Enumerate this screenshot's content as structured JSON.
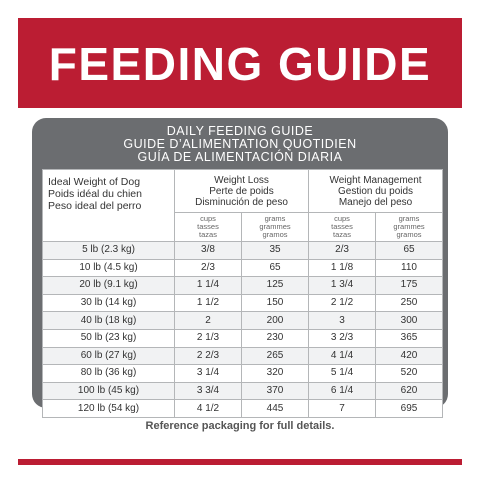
{
  "banner": {
    "title": "FEEDING GUIDE"
  },
  "card": {
    "title_en": "DAILY FEEDING GUIDE",
    "title_fr": "GUIDE D’ALIMENTATION QUOTIDIEN",
    "title_es": "GUÍA DE ALIMENTACIÓN DIARIA"
  },
  "table": {
    "col_weight": [
      "Ideal Weight of Dog",
      "Poids idéal du chien",
      "Peso ideal del perro"
    ],
    "col_loss": [
      "Weight Loss",
      "Perte de poids",
      "Disminución de peso"
    ],
    "col_mgmt": [
      "Weight Management",
      "Gestion du poids",
      "Manejo del peso"
    ],
    "unit_cups": [
      "cups",
      "tasses",
      "tazas"
    ],
    "unit_grams": [
      "grams",
      "grammes",
      "gramos"
    ],
    "rows": [
      {
        "weight": "5 lb (2.3 kg)",
        "loss_cups": "3/8",
        "loss_grams": "35",
        "mgmt_cups": "2/3",
        "mgmt_grams": "65"
      },
      {
        "weight": "10 lb (4.5 kg)",
        "loss_cups": "2/3",
        "loss_grams": "65",
        "mgmt_cups": "1 1/8",
        "mgmt_grams": "110"
      },
      {
        "weight": "20 lb (9.1 kg)",
        "loss_cups": "1 1/4",
        "loss_grams": "125",
        "mgmt_cups": "1 3/4",
        "mgmt_grams": "175"
      },
      {
        "weight": "30 lb (14 kg)",
        "loss_cups": "1 1/2",
        "loss_grams": "150",
        "mgmt_cups": "2 1/2",
        "mgmt_grams": "250"
      },
      {
        "weight": "40 lb (18 kg)",
        "loss_cups": "2",
        "loss_grams": "200",
        "mgmt_cups": "3",
        "mgmt_grams": "300"
      },
      {
        "weight": "50 lb (23 kg)",
        "loss_cups": "2 1/3",
        "loss_grams": "230",
        "mgmt_cups": "3 2/3",
        "mgmt_grams": "365"
      },
      {
        "weight": "60 lb (27 kg)",
        "loss_cups": "2 2/3",
        "loss_grams": "265",
        "mgmt_cups": "4 1/4",
        "mgmt_grams": "420"
      },
      {
        "weight": "80 lb (36 kg)",
        "loss_cups": "3 1/4",
        "loss_grams": "320",
        "mgmt_cups": "5 1/4",
        "mgmt_grams": "520"
      },
      {
        "weight": "100 lb (45 kg)",
        "loss_cups": "3 3/4",
        "loss_grams": "370",
        "mgmt_cups": "6 1/4",
        "mgmt_grams": "620"
      },
      {
        "weight": "120 lb (54 kg)",
        "loss_cups": "4 1/2",
        "loss_grams": "445",
        "mgmt_cups": "7",
        "mgmt_grams": "695"
      }
    ]
  },
  "footer": {
    "note": "Reference packaging for full details."
  },
  "colors": {
    "brand_red": "#bb1d33",
    "card_gray": "#6b6d70"
  }
}
